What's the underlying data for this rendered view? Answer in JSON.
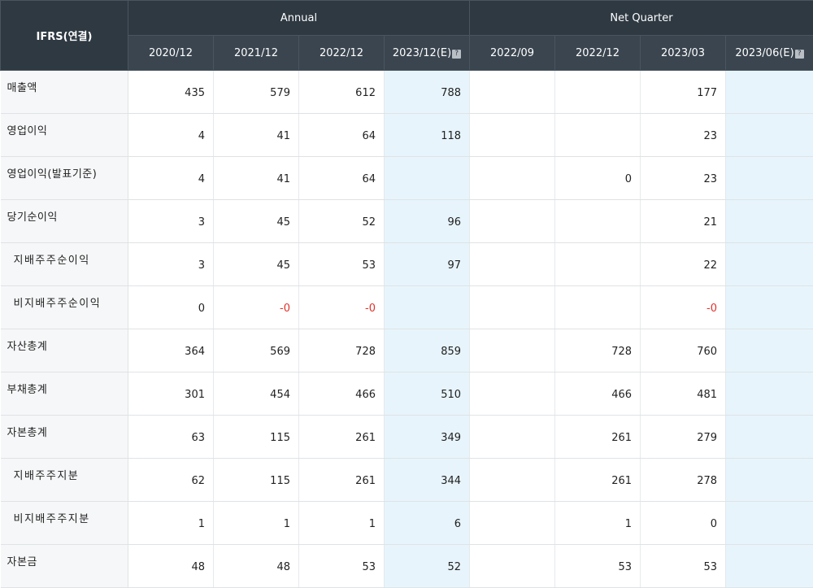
{
  "header": {
    "corner_label": "IFRS(연결)",
    "group_annual": "Annual",
    "group_quarter": "Net Quarter",
    "estimate_icon": "?",
    "periods": [
      "2020/12",
      "2021/12",
      "2022/12",
      "2023/12(E)",
      "2022/09",
      "2022/12",
      "2023/03",
      "2023/06(E)"
    ],
    "estimate_columns": [
      3,
      7
    ]
  },
  "rows": [
    {
      "label": "매출액",
      "sub": false,
      "values": [
        "435",
        "579",
        "612",
        "788",
        "",
        "",
        "177",
        ""
      ]
    },
    {
      "label": "영업이익",
      "sub": false,
      "values": [
        "4",
        "41",
        "64",
        "118",
        "",
        "",
        "23",
        ""
      ]
    },
    {
      "label": "영업이익(발표기준)",
      "sub": false,
      "values": [
        "4",
        "41",
        "64",
        "",
        "",
        "0",
        "23",
        ""
      ]
    },
    {
      "label": "당기순이익",
      "sub": false,
      "values": [
        "3",
        "45",
        "52",
        "96",
        "",
        "",
        "21",
        ""
      ]
    },
    {
      "label": "지배주주순이익",
      "sub": true,
      "values": [
        "3",
        "45",
        "53",
        "97",
        "",
        "",
        "22",
        ""
      ]
    },
    {
      "label": "비지배주주순이익",
      "sub": true,
      "values": [
        "0",
        "-0",
        "-0",
        "",
        "",
        "",
        "-0",
        ""
      ]
    },
    {
      "label": "자산총계",
      "sub": false,
      "values": [
        "364",
        "569",
        "728",
        "859",
        "",
        "728",
        "760",
        ""
      ]
    },
    {
      "label": "부채총계",
      "sub": false,
      "values": [
        "301",
        "454",
        "466",
        "510",
        "",
        "466",
        "481",
        ""
      ]
    },
    {
      "label": "자본총계",
      "sub": false,
      "values": [
        "63",
        "115",
        "261",
        "349",
        "",
        "261",
        "279",
        ""
      ]
    },
    {
      "label": "지배주주지분",
      "sub": true,
      "values": [
        "62",
        "115",
        "261",
        "344",
        "",
        "261",
        "278",
        ""
      ]
    },
    {
      "label": "비지배주주지분",
      "sub": true,
      "values": [
        "1",
        "1",
        "1",
        "6",
        "",
        "1",
        "0",
        ""
      ]
    },
    {
      "label": "자본금",
      "sub": false,
      "values": [
        "48",
        "48",
        "53",
        "52",
        "",
        "53",
        "53",
        ""
      ]
    }
  ],
  "colors": {
    "header_bg": "#2f3942",
    "estimate_bg": "#e7f4fb",
    "negative_text": "#e0322c"
  }
}
